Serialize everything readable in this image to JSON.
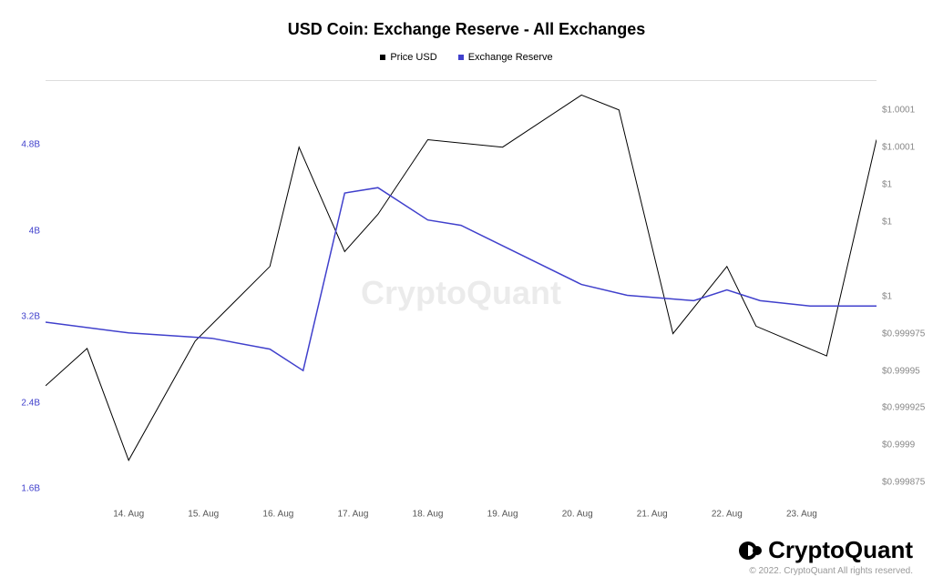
{
  "chart": {
    "type": "line",
    "title": "USD Coin: Exchange Reserve - All Exchanges",
    "title_fontsize": 18,
    "title_color": "#000000",
    "background_color": "#ffffff",
    "watermark": "CryptoQuant",
    "watermark_color": "rgba(0,0,0,0.08)",
    "legend": {
      "items": [
        {
          "label": "Price USD",
          "color": "#000000"
        },
        {
          "label": "Exchange Reserve",
          "color": "#4040cc"
        }
      ]
    },
    "x": {
      "categories": [
        "14. Aug",
        "15. Aug",
        "16. Aug",
        "17. Aug",
        "18. Aug",
        "19. Aug",
        "20. Aug",
        "21. Aug",
        "22. Aug",
        "23. Aug"
      ]
    },
    "y_left": {
      "label_color": "#4040cc",
      "ticks": [
        1.6,
        2.4,
        3.2,
        4.0,
        4.8
      ],
      "tick_labels": [
        "1.6B",
        "2.4B",
        "3.2B",
        "4B",
        "4.8B"
      ],
      "min": 1.45,
      "max": 5.4
    },
    "y_right": {
      "label_color": "#888888",
      "ticks": [
        0.999875,
        0.9999,
        0.999925,
        0.99995,
        0.999975,
        1.0,
        1.00005,
        1.000075,
        1.0001,
        1.000125
      ],
      "tick_labels": [
        "$0.999875",
        "$0.9999",
        "$0.999925",
        "$0.99995",
        "$0.999975",
        "$1",
        "$1",
        "$1",
        "$1.0001",
        "$1.0001"
      ],
      "min": 0.99986,
      "max": 1.000145
    },
    "series": {
      "price_usd": {
        "color": "#000000",
        "line_width": 1,
        "axis": "right",
        "x": [
          0.0,
          0.05,
          0.1,
          0.18,
          0.27,
          0.305,
          0.36,
          0.4,
          0.46,
          0.55,
          0.645,
          0.69,
          0.755,
          0.82,
          0.855,
          0.94,
          1.0
        ],
        "y": [
          0.99994,
          0.999965,
          0.99989,
          0.99997,
          1.00002,
          1.0001,
          1.00003,
          1.000055,
          1.000105,
          1.0001,
          1.000135,
          1.000125,
          0.999975,
          1.00002,
          0.99998,
          0.99996,
          1.000105
        ]
      },
      "exchange_reserve": {
        "color": "#4040cc",
        "line_width": 1.5,
        "axis": "left",
        "x": [
          0.0,
          0.1,
          0.2,
          0.27,
          0.31,
          0.36,
          0.4,
          0.46,
          0.5,
          0.645,
          0.7,
          0.78,
          0.82,
          0.86,
          0.92,
          1.0
        ],
        "y": [
          3.15,
          3.05,
          3.0,
          2.9,
          2.7,
          4.35,
          4.4,
          4.1,
          4.05,
          3.5,
          3.4,
          3.35,
          3.45,
          3.35,
          3.3,
          3.3
        ]
      }
    },
    "grid_color": "#dddddd"
  },
  "footer": {
    "brand": "CryptoQuant",
    "copyright": "© 2022. CryptoQuant All rights reserved."
  }
}
